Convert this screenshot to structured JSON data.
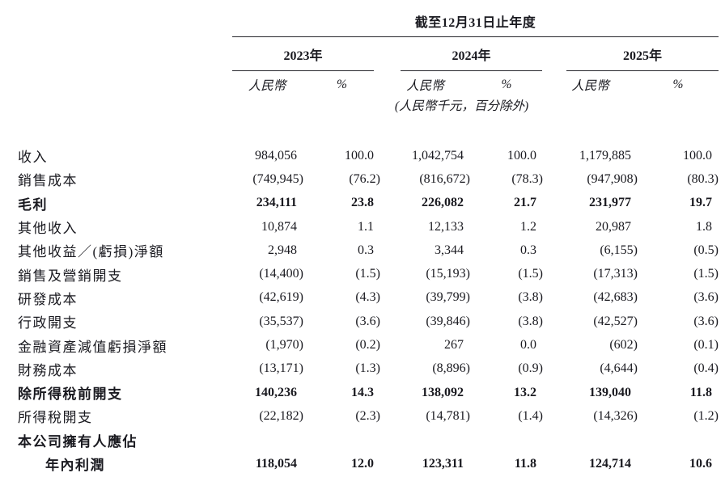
{
  "colors": {
    "ink": "#1a1a20",
    "rule": "#26262c",
    "background": "#ffffff"
  },
  "table": {
    "title": "截至12月31日止年度",
    "year_headers": [
      "2023年",
      "2024年",
      "2025年"
    ],
    "currency_header": "人民幣",
    "percent_header": "%",
    "unit_note": "(人民幣千元，百分除外)",
    "columns_per_year": [
      "人民幣",
      "%"
    ],
    "rows": [
      {
        "label": "收入",
        "bold": false,
        "indent": false,
        "dots": true,
        "values": [
          "984,056",
          "100.0",
          "1,042,754",
          "100.0",
          "1,179,885",
          "100.0"
        ]
      },
      {
        "label": "銷售成本",
        "bold": false,
        "indent": false,
        "dots": true,
        "values": [
          "(749,945)",
          "(76.2)",
          "(816,672)",
          "(78.3)",
          "(947,908)",
          "(80.3)"
        ]
      },
      {
        "label": "毛利",
        "bold": true,
        "indent": false,
        "dots": true,
        "values": [
          "234,111",
          "23.8",
          "226,082",
          "21.7",
          "231,977",
          "19.7"
        ]
      },
      {
        "label": "其他收入",
        "bold": false,
        "indent": false,
        "dots": true,
        "values": [
          "10,874",
          "1.1",
          "12,133",
          "1.2",
          "20,987",
          "1.8"
        ]
      },
      {
        "label": "其他收益／(虧損)淨額",
        "bold": false,
        "indent": false,
        "dots": true,
        "values": [
          "2,948",
          "0.3",
          "3,344",
          "0.3",
          "(6,155)",
          "(0.5)"
        ]
      },
      {
        "label": "銷售及營銷開支",
        "bold": false,
        "indent": false,
        "dots": true,
        "values": [
          "(14,400)",
          "(1.5)",
          "(15,193)",
          "(1.5)",
          "(17,313)",
          "(1.5)"
        ]
      },
      {
        "label": "研發成本",
        "bold": false,
        "indent": false,
        "dots": true,
        "values": [
          "(42,619)",
          "(4.3)",
          "(39,799)",
          "(3.8)",
          "(42,683)",
          "(3.6)"
        ]
      },
      {
        "label": "行政開支",
        "bold": false,
        "indent": false,
        "dots": true,
        "values": [
          "(35,537)",
          "(3.6)",
          "(39,846)",
          "(3.8)",
          "(42,527)",
          "(3.6)"
        ]
      },
      {
        "label": "金融資產減值虧損淨額",
        "bold": false,
        "indent": false,
        "dots": true,
        "values": [
          "(1,970)",
          "(0.2)",
          "267",
          "0.0",
          "(602)",
          "(0.1)"
        ]
      },
      {
        "label": "財務成本",
        "bold": false,
        "indent": false,
        "dots": true,
        "values": [
          "(13,171)",
          "(1.3)",
          "(8,896)",
          "(0.9)",
          "(4,644)",
          "(0.4)"
        ]
      },
      {
        "label": "除所得稅前開支",
        "bold": true,
        "indent": false,
        "dots": true,
        "values": [
          "140,236",
          "14.3",
          "138,092",
          "13.2",
          "139,040",
          "11.8"
        ]
      },
      {
        "label": "所得稅開支",
        "bold": false,
        "indent": false,
        "dots": true,
        "values": [
          "(22,182)",
          "(2.3)",
          "(14,781)",
          "(1.4)",
          "(14,326)",
          "(1.2)"
        ]
      },
      {
        "label": "本公司擁有人應佔",
        "bold": true,
        "indent": false,
        "dots": false,
        "values": [
          "",
          "",
          "",
          "",
          "",
          ""
        ]
      },
      {
        "label": "年內利潤",
        "bold": true,
        "indent": true,
        "dots": true,
        "values": [
          "118,054",
          "12.0",
          "123,311",
          "11.8",
          "124,714",
          "10.6"
        ]
      }
    ]
  }
}
